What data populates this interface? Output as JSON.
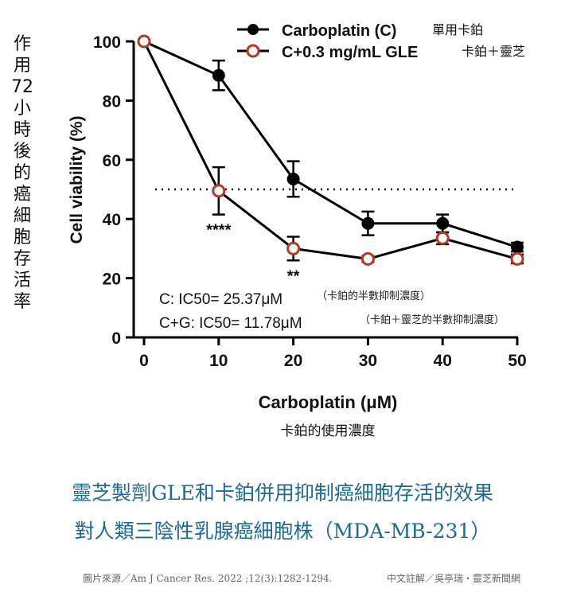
{
  "side_label": "作用72小時後的癌細胞存活率",
  "captions": {
    "line1": "靈芝製劑GLE和卡鉑併用抑制癌細胞存活的效果",
    "line2": "對人類三陰性乳腺癌細胞株（MDA-MB-231）"
  },
  "footer": {
    "source": "圖片來源／Am J Cancer Res. 2022 ;12(3):1282-1294.",
    "credit": "中文註解／吳亭瑞・靈芝新聞網"
  },
  "chart_data": {
    "type": "line",
    "xlabel": "Carboplatin (μM)",
    "xlabel_cn": "卡鉑的使用濃度",
    "ylabel": "Cell viability (%)",
    "xlim": [
      0,
      50
    ],
    "ylim": [
      0,
      100
    ],
    "xticks": [
      0,
      10,
      20,
      30,
      40,
      50
    ],
    "yticks": [
      0,
      20,
      40,
      60,
      80,
      100
    ],
    "reference_line": {
      "y": 50,
      "style": "dotted"
    },
    "x": [
      0,
      10,
      20,
      30,
      40,
      50
    ],
    "series": [
      {
        "name": "Carboplatin (C)",
        "name_cn": "單用卡鉑",
        "marker": "filled",
        "color": "#000000",
        "values": [
          100,
          88.5,
          53.5,
          38.5,
          38.5,
          30.5
        ],
        "errors": [
          0,
          5,
          6,
          4,
          3,
          1.5
        ]
      },
      {
        "name": "C+0.3 mg/mL GLE",
        "name_cn": "卡鉑＋靈芝",
        "marker": "open",
        "color": "#000000",
        "marker_edge": "#b23a22",
        "values": [
          100,
          49.5,
          30,
          26.5,
          33.5,
          26.5
        ],
        "errors": [
          0,
          8,
          4,
          1,
          2,
          1.5
        ]
      }
    ],
    "significance": [
      {
        "x": 10,
        "label": "****"
      },
      {
        "x": 20,
        "label": "**"
      }
    ],
    "annotations": [
      {
        "text": "C: IC50= 25.37μM",
        "note": "（卡鉑的半數抑制濃度）"
      },
      {
        "text": "C+G: IC50= 11.78μM",
        "note": "（卡鉑＋靈芝的半數抑制濃度）"
      }
    ]
  }
}
